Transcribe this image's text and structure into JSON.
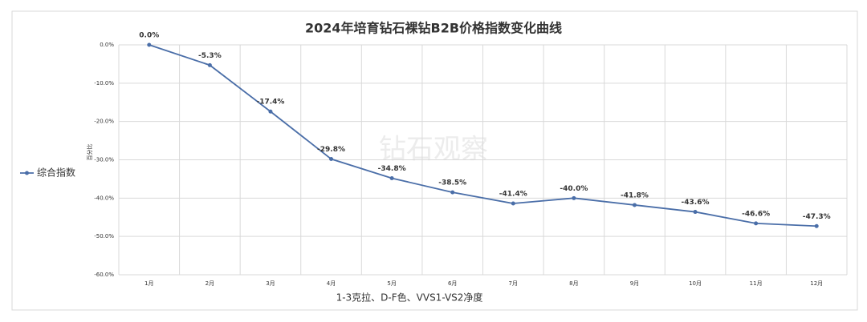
{
  "chart_data": {
    "type": "line",
    "title": "2024年培育钻石裸钻B2B价格指数变化曲线",
    "x_label": "1-3克拉、D-F色、VVS1-VS2净度",
    "y_label": "百分比",
    "watermark": "钻石观察",
    "categories": [
      "1月",
      "2月",
      "3月",
      "4月",
      "5月",
      "6月",
      "7月",
      "8月",
      "9月",
      "10月",
      "11月",
      "12月"
    ],
    "series": [
      {
        "name": "综合指数",
        "color": "#4a6ea8",
        "values": [
          0,
          -5.3,
          -17.4,
          -29.8,
          -34.8,
          -38.5,
          -41.4,
          -40.0,
          -41.8,
          -43.6,
          -46.6,
          -47.3
        ],
        "value_labels": [
          "0.0%",
          "-5.3%",
          "-17.4%",
          "-29.8%",
          "-34.8%",
          "-38.5%",
          "-41.4%",
          "-40.0%",
          "-41.8%",
          "-43.6%",
          "-46.6%",
          "-47.3%"
        ]
      }
    ],
    "ylim": [
      -60,
      0
    ],
    "yticks": [
      {
        "value": 0,
        "label": "0.0%"
      },
      {
        "value": -10,
        "label": "-10.0%"
      },
      {
        "value": -20,
        "label": "-20.0%"
      },
      {
        "value": -30,
        "label": "-30.0%"
      },
      {
        "value": -40,
        "label": "-40.0%"
      },
      {
        "value": -50,
        "label": "-50.0%"
      },
      {
        "value": -60,
        "label": "-60.0%"
      }
    ],
    "grid": true,
    "legend": "left"
  }
}
